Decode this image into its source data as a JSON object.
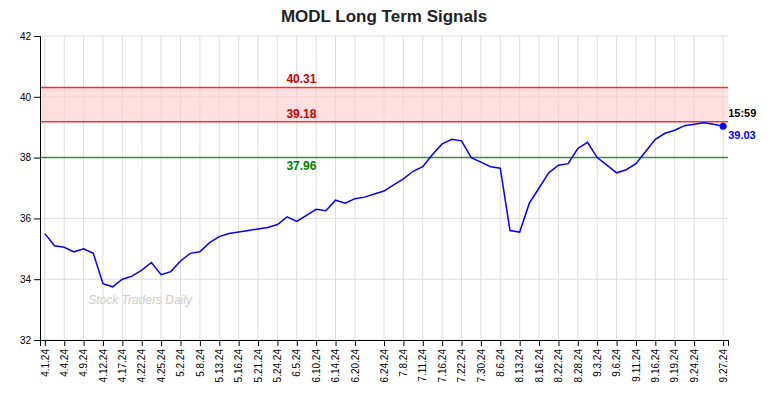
{
  "chart_data": {
    "type": "line",
    "title": "MODL Long Term Signals",
    "watermark": "Stock Traders Daily",
    "categories": [
      "4.1.24",
      null,
      "4.4.24",
      null,
      "4.9.24",
      null,
      "4.12.24",
      null,
      "4.17.24",
      null,
      "4.22.24",
      null,
      "4.25.24",
      null,
      "5.2.24",
      null,
      "5.8.24",
      null,
      "5.13.24",
      null,
      "5.16.24",
      null,
      "5.21.24",
      null,
      "5.24.24",
      null,
      "6.5.24",
      null,
      "6.10.24",
      null,
      "6.14.24",
      null,
      "6.20.24",
      null,
      null,
      "6.24.24",
      null,
      "7.8.24",
      null,
      "7.11.24",
      null,
      "7.16.24",
      null,
      "7.22.24",
      null,
      "7.30.24",
      null,
      "8.6.24",
      null,
      "8.13.24",
      null,
      "8.16.24",
      null,
      "8.22.24",
      null,
      "8.28.24",
      null,
      "9.3.24",
      null,
      "9.6.24",
      null,
      "9.11.24",
      null,
      "9.16.24",
      null,
      "9.19.24",
      null,
      "9.24.24",
      null,
      null,
      "9.27.24"
    ],
    "values": [
      35.5,
      35.1,
      35.05,
      34.9,
      35.0,
      34.85,
      33.85,
      33.75,
      34.0,
      34.1,
      34.3,
      34.55,
      34.15,
      34.25,
      34.6,
      34.85,
      34.9,
      35.2,
      35.4,
      35.5,
      35.55,
      35.6,
      35.65,
      35.7,
      35.8,
      36.05,
      35.9,
      36.1,
      36.3,
      36.25,
      36.6,
      36.5,
      36.65,
      36.7,
      36.8,
      36.9,
      37.1,
      37.3,
      37.55,
      37.7,
      38.1,
      38.45,
      38.6,
      38.55,
      38.0,
      37.85,
      37.7,
      37.65,
      35.6,
      35.55,
      36.5,
      37.0,
      37.5,
      37.75,
      37.8,
      38.3,
      38.5,
      38.0,
      37.75,
      37.5,
      37.6,
      37.8,
      38.2,
      38.6,
      38.8,
      38.9,
      39.05,
      39.1,
      39.15,
      39.1,
      39.03
    ],
    "color": "blue",
    "ylim": [
      32,
      42
    ],
    "yticks": [
      32,
      34,
      36,
      38,
      40,
      42
    ],
    "grid": true,
    "band": {
      "from": 39.18,
      "to": 40.31,
      "color": "#ffcccc"
    },
    "reference_lines": [
      {
        "value": 40.31,
        "label": "40.31",
        "color": "red",
        "label_color": "#cc0000"
      },
      {
        "value": 39.18,
        "label": "39.18",
        "color": "red",
        "label_color": "#cc0000"
      },
      {
        "value": 38.0,
        "label": "37.96",
        "color": "green",
        "label_color": "green"
      }
    ],
    "last_point": {
      "time": "15:59",
      "price": 39.03,
      "price_color": "blue",
      "dot_color": "blue"
    }
  }
}
